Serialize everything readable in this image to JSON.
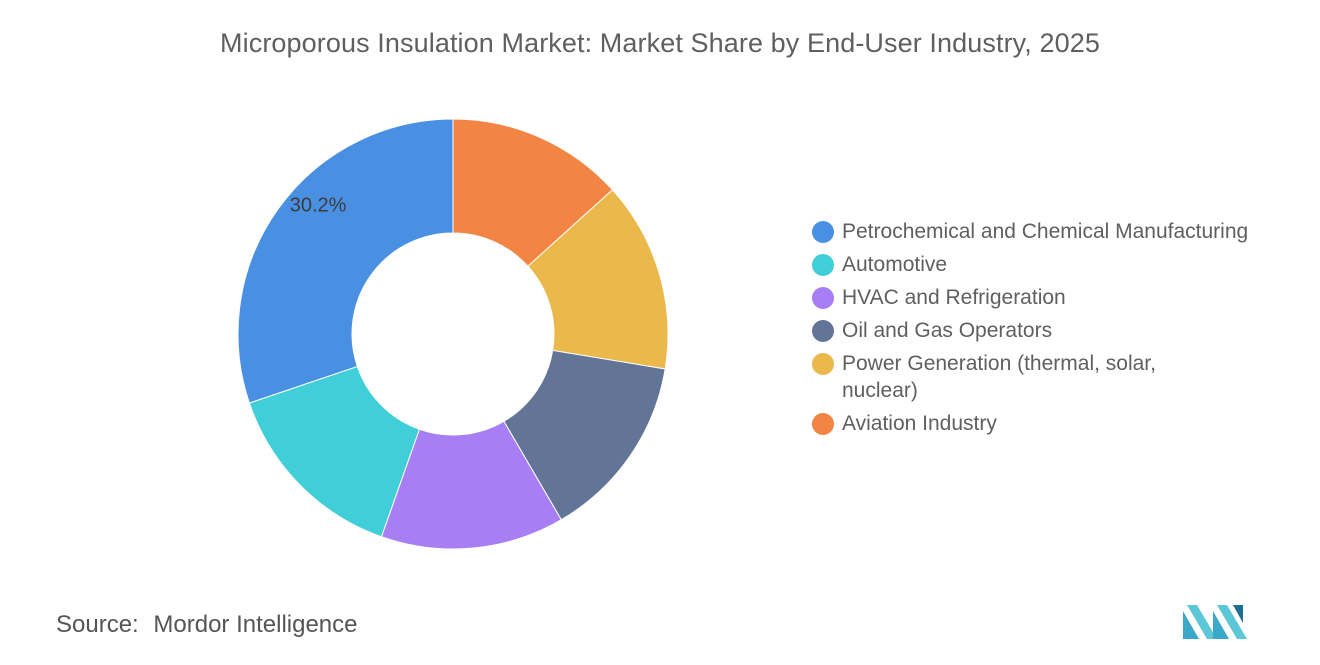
{
  "title": "Microporous Insulation Market: Market Share by End-User Industry, 2025",
  "source": {
    "label": "Source:",
    "value": "Mordor Intelligence"
  },
  "chart_data": {
    "type": "pie",
    "title": "Microporous Insulation Market: Market Share by End-User Industry, 2025",
    "donut": true,
    "legend_position": "right",
    "labels": [
      "Petrochemical and Chemical Manufacturing",
      "Automotive",
      "HVAC and Refrigeration",
      "Oil and Gas Operators",
      "Power Generation (thermal, solar, nuclear)",
      "Aviation Industry"
    ],
    "values": [
      30.2,
      14.4,
      13.8,
      14.0,
      14.3,
      13.3
    ],
    "colors": [
      "#4a90e2",
      "#40cfd8",
      "#a77ef4",
      "#637596",
      "#eab84b",
      "#f28444"
    ],
    "data_labels": [
      {
        "index": 0,
        "text": "30.2%"
      }
    ]
  }
}
